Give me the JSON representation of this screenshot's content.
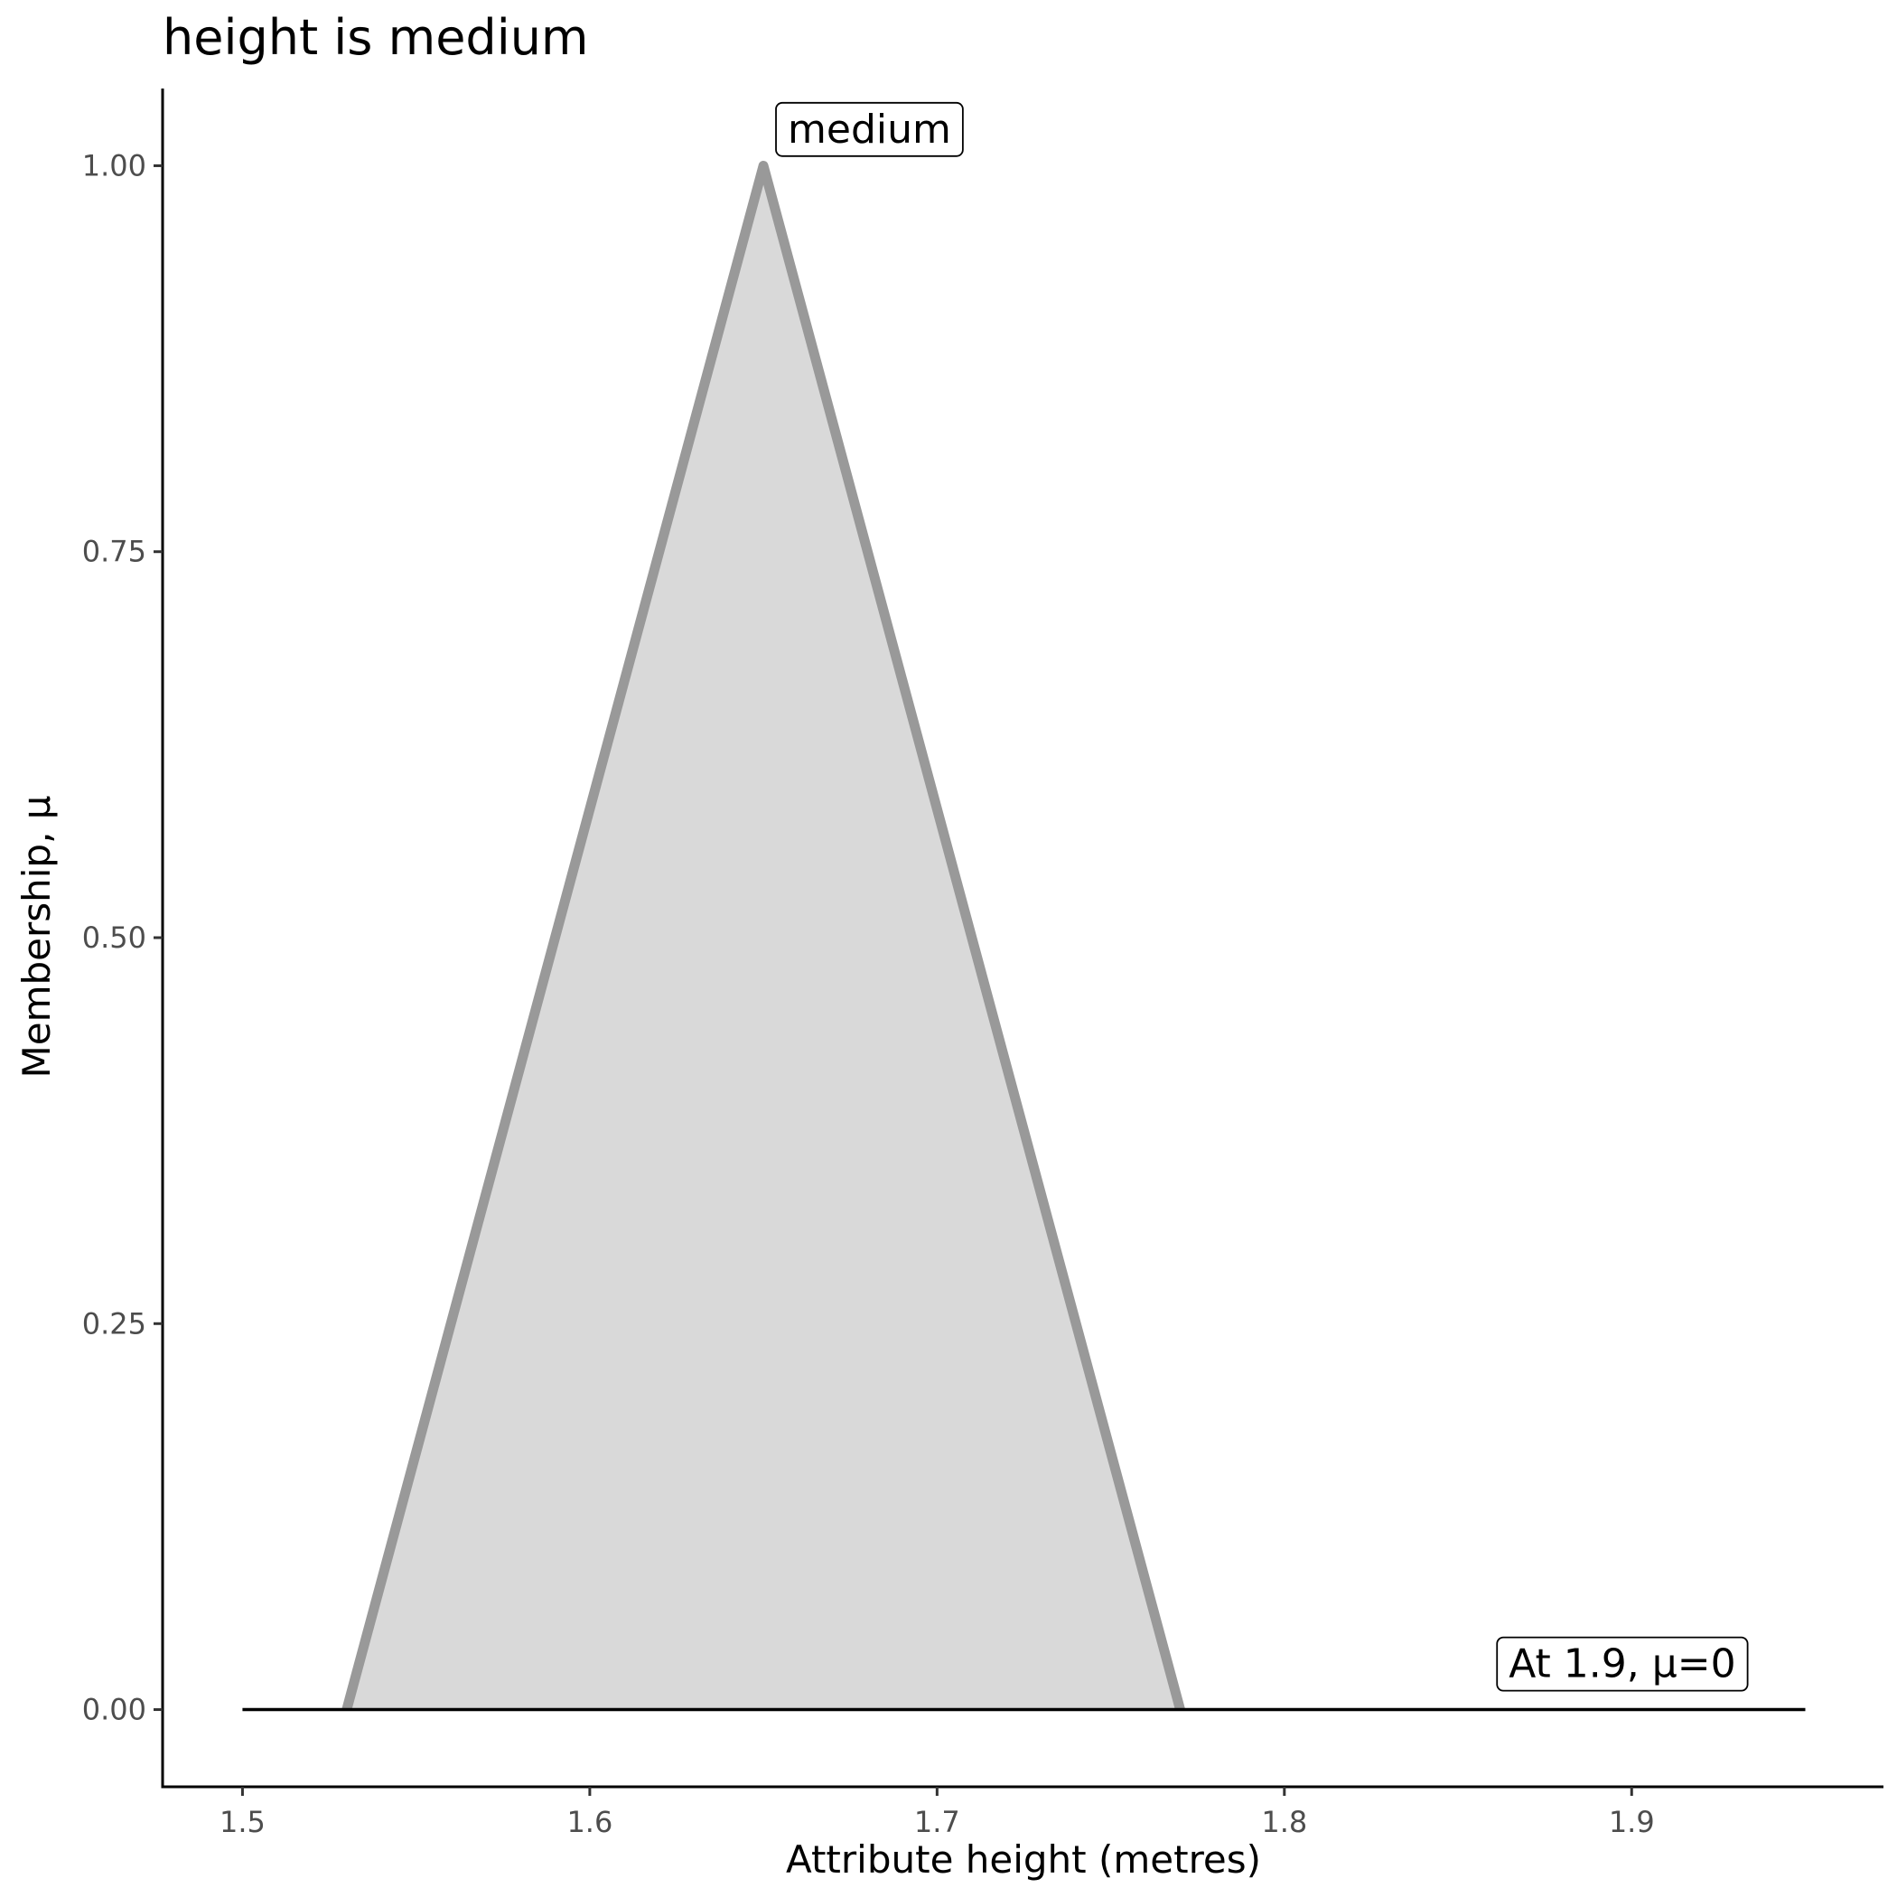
{
  "chart_data": {
    "type": "area",
    "title": "height is medium",
    "xlabel": "Attribute height (metres)",
    "ylabel": "Membership, μ",
    "xlim": [
      1.477,
      1.9725
    ],
    "ylim": [
      -0.05,
      1.05
    ],
    "xticks": [
      {
        "value": 1.5,
        "label": "1.5"
      },
      {
        "value": 1.6,
        "label": "1.6"
      },
      {
        "value": 1.7,
        "label": "1.7"
      },
      {
        "value": 1.8,
        "label": "1.8"
      },
      {
        "value": 1.9,
        "label": "1.9"
      }
    ],
    "yticks": [
      {
        "value": 0,
        "label": "0.00"
      },
      {
        "value": 0.25,
        "label": "0.25"
      },
      {
        "value": 0.5,
        "label": "0.50"
      },
      {
        "value": 0.75,
        "label": "0.75"
      },
      {
        "value": 1.0,
        "label": "1.00"
      }
    ],
    "grid": false,
    "series": [
      {
        "name": "medium",
        "x": [
          1.53,
          1.65,
          1.77
        ],
        "y": [
          0,
          1,
          0
        ],
        "line_color": "#999999",
        "fill_color": "#d9d9d9"
      }
    ],
    "baseline": {
      "x": [
        1.5,
        1.95
      ],
      "y": [
        0,
        0
      ],
      "color": "#000000"
    },
    "annotations": [
      {
        "text": "medium",
        "x": 1.657,
        "y": 1.0235,
        "anchor": "start"
      },
      {
        "text": "At 1.9, μ=0",
        "x": 1.93,
        "y": 0.0295,
        "anchor": "end"
      }
    ]
  }
}
